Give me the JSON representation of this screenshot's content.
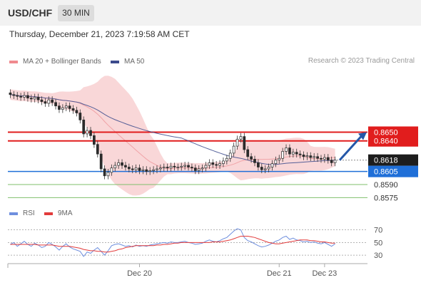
{
  "header": {
    "symbol": "USD/CHF",
    "timeframe": "30 MIN"
  },
  "datetime": "Thursday, December 21, 2023 7:19:58 AM CET",
  "copyright": "Research © 2023 Trading Central",
  "colors": {
    "resistance": "#e11d1d",
    "support": "#1f6fd8",
    "target_line": "#7fbf6b",
    "ma50": "#3b4a8c",
    "bollinger": "#f7c9cb",
    "arrow": "#2457a8",
    "rsi": "#6f8fde",
    "rsi_ma": "#e23b3b"
  },
  "chart_data": [
    {
      "type": "candlestick",
      "title": "USD/CHF",
      "legend": [
        "MA 20 + Bollinger Bands",
        "MA 50"
      ],
      "x_ticks": [
        "Dec 20",
        "Dec 21",
        "Dec 23"
      ],
      "ylim": [
        0.8568,
        0.8723
      ],
      "current_price": 0.8618,
      "levels": [
        {
          "value": 0.865,
          "label": "0.8650",
          "kind": "resistance"
        },
        {
          "value": 0.864,
          "label": "0.8640",
          "kind": "resistance"
        },
        {
          "value": 0.8618,
          "label": "0.8618",
          "kind": "current"
        },
        {
          "value": 0.8605,
          "label": "0.8605",
          "kind": "pivot"
        },
        {
          "value": 0.859,
          "label": "0.8590",
          "kind": "target"
        },
        {
          "value": 0.8575,
          "label": "0.8575",
          "kind": "target"
        }
      ],
      "forecast_arrow": {
        "from": 0.8618,
        "to": 0.865,
        "direction": "up"
      },
      "closes": [
        0.8693,
        0.8692,
        0.8691,
        0.869,
        0.8692,
        0.8689,
        0.8688,
        0.869,
        0.8687,
        0.8685,
        0.8683,
        0.8687,
        0.8684,
        0.868,
        0.8676,
        0.8678,
        0.868,
        0.8677,
        0.8675,
        0.8672,
        0.8664,
        0.8648,
        0.8652,
        0.8646,
        0.8636,
        0.8625,
        0.8608,
        0.86,
        0.8604,
        0.8609,
        0.8612,
        0.8615,
        0.8612,
        0.861,
        0.8608,
        0.8607,
        0.8609,
        0.8606,
        0.8607,
        0.8605,
        0.8606,
        0.8607,
        0.8608,
        0.8609,
        0.861,
        0.8609,
        0.8611,
        0.861,
        0.861,
        0.8611,
        0.8612,
        0.861,
        0.8609,
        0.8606,
        0.8608,
        0.8609,
        0.8612,
        0.8615,
        0.8613,
        0.8612,
        0.8614,
        0.8617,
        0.862,
        0.8626,
        0.8634,
        0.8642,
        0.8645,
        0.863,
        0.8622,
        0.8619,
        0.8615,
        0.861,
        0.8607,
        0.8608,
        0.861,
        0.8614,
        0.8618,
        0.862,
        0.8628,
        0.8632,
        0.8625,
        0.8627,
        0.8625,
        0.8624,
        0.8622,
        0.8623,
        0.8621,
        0.8622,
        0.862,
        0.8619,
        0.8621,
        0.8618,
        0.8615,
        0.8618
      ]
    },
    {
      "type": "line",
      "title": "RSI",
      "legend": [
        "RSI",
        "9MA"
      ],
      "x_ticks": [
        "Dec 20",
        "Dec 21",
        "Dec 23"
      ],
      "y_ticks": [
        70,
        50,
        30
      ],
      "ylim": [
        20,
        82
      ],
      "series": [
        {
          "name": "RSI",
          "values": [
            47,
            50,
            44,
            48,
            52,
            47,
            44,
            49,
            46,
            42,
            44,
            50,
            47,
            43,
            38,
            44,
            48,
            43,
            40,
            38,
            36,
            28,
            35,
            33,
            38,
            42,
            36,
            30,
            37,
            45,
            47,
            48,
            46,
            44,
            45,
            43,
            46,
            44,
            45,
            44,
            46,
            47,
            48,
            49,
            50,
            49,
            51,
            50,
            50,
            51,
            52,
            50,
            49,
            47,
            48,
            49,
            52,
            54,
            52,
            51,
            53,
            56,
            58,
            63,
            68,
            72,
            70,
            58,
            53,
            51,
            48,
            45,
            43,
            44,
            46,
            49,
            52,
            54,
            58,
            60,
            55,
            57,
            54,
            53,
            51,
            52,
            50,
            51,
            49,
            48,
            50,
            47,
            44,
            48
          ]
        },
        {
          "name": "9MA",
          "values": [
            47,
            47,
            47,
            47,
            47,
            47,
            47,
            47,
            46,
            46,
            46,
            46,
            46,
            45,
            44,
            44,
            44,
            44,
            43,
            42,
            41,
            39,
            38,
            37,
            37,
            36,
            36,
            35,
            35,
            36,
            37,
            39,
            40,
            42,
            43,
            44,
            45,
            45,
            45,
            45,
            45,
            45,
            46,
            46,
            47,
            47,
            48,
            49,
            49,
            50,
            50,
            50,
            50,
            50,
            50,
            50,
            50,
            50,
            51,
            51,
            51,
            52,
            53,
            54,
            56,
            58,
            60,
            60,
            60,
            59,
            58,
            56,
            54,
            52,
            50,
            49,
            48,
            48,
            49,
            50,
            51,
            52,
            53,
            54,
            54,
            54,
            53,
            53,
            52,
            51,
            51,
            50,
            49,
            49
          ]
        }
      ]
    }
  ]
}
